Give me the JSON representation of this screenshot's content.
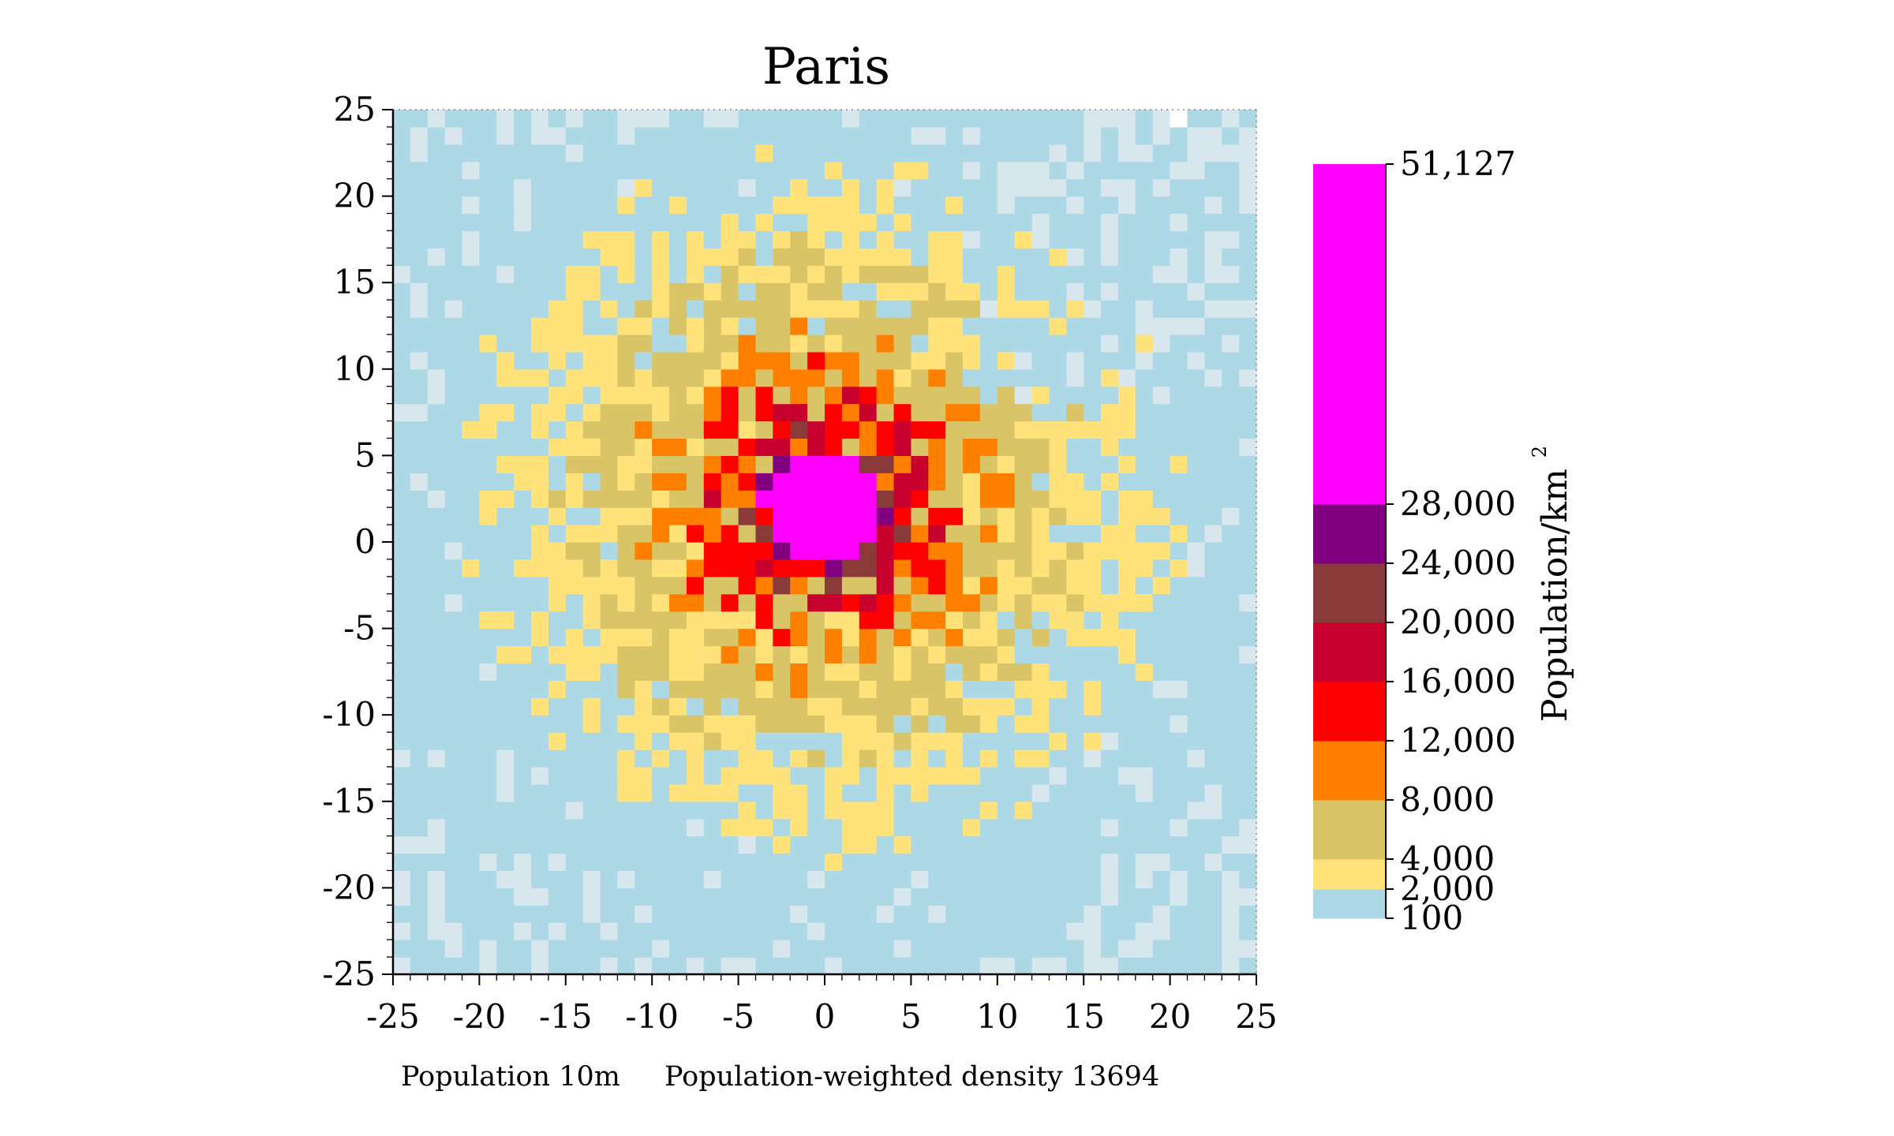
{
  "chart_data": {
    "type": "heatmap",
    "title": "Paris",
    "xlabel": "",
    "ylabel": "",
    "xlim": [
      -25,
      25
    ],
    "ylim": [
      -25,
      25
    ],
    "x_ticks": [
      -25,
      -20,
      -15,
      -10,
      -5,
      0,
      5,
      10,
      15,
      20,
      25
    ],
    "y_ticks": [
      -25,
      -20,
      -15,
      -10,
      -5,
      0,
      5,
      10,
      15,
      20,
      25
    ],
    "grid": false,
    "grid_resolution": 50,
    "colorbar": {
      "label": "Population/km²",
      "label_text": "Population/km",
      "label_superscript": "2",
      "classes": [
        {
          "from": 100,
          "to": 2000,
          "color": "#add8e6"
        },
        {
          "from": 2000,
          "to": 4000,
          "color": "#ffe27a"
        },
        {
          "from": 4000,
          "to": 8000,
          "color": "#d9c468"
        },
        {
          "from": 8000,
          "to": 12000,
          "color": "#ff7f00"
        },
        {
          "from": 12000,
          "to": 16000,
          "color": "#ff0000"
        },
        {
          "from": 16000,
          "to": 20000,
          "color": "#c8002e"
        },
        {
          "from": 20000,
          "to": 24000,
          "color": "#8b3a3a"
        },
        {
          "from": 24000,
          "to": 28000,
          "color": "#800080"
        },
        {
          "from": 28000,
          "to": 51127,
          "color": "#ff00ff"
        }
      ],
      "tick_labels": [
        "100",
        "2,000",
        "4,000",
        "8,000",
        "12,000",
        "16,000",
        "20,000",
        "24,000",
        "28,000",
        "51,127"
      ]
    },
    "low_density_colors": [
      "#ffffff",
      "#d8e6ee"
    ],
    "density_model": {
      "description": "radial density field centred near origin",
      "peak_center": [
        0,
        2
      ],
      "peak_value": 51127
    },
    "annotations": [
      "Population 10m",
      "Population-weighted density 13694"
    ]
  },
  "footer": {
    "population": "Population 10m",
    "weighted_density": "Population-weighted density 13694"
  }
}
